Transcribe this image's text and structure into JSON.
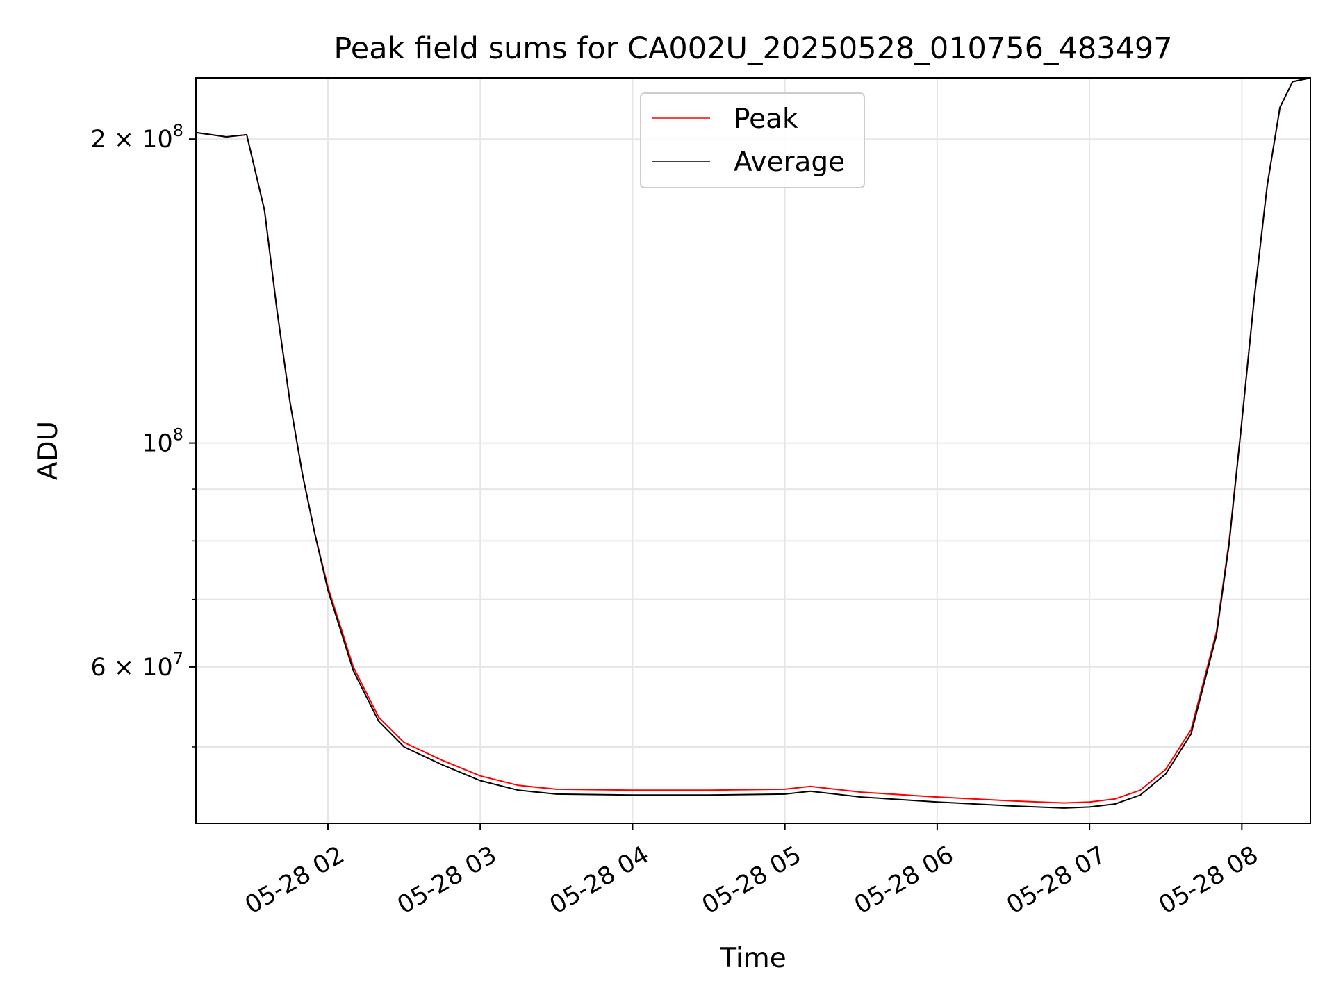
{
  "chart_data": {
    "type": "line",
    "title": "Peak field sums for CA002U_20250528_010756_483497",
    "xlabel": "Time",
    "ylabel": "ADU",
    "yscale": "log",
    "grid": true,
    "legend_position": "top-center",
    "xlim": [
      "05-28 01:08",
      "05-28 08:27"
    ],
    "ylim": [
      42000000.0,
      230000000.0
    ],
    "x_ticks": [
      "05-28 02",
      "05-28 03",
      "05-28 04",
      "05-28 05",
      "05-28 06",
      "05-28 07",
      "05-28 08"
    ],
    "y_ticks": [
      {
        "value": 200000000,
        "mantissa": "2 × 10",
        "exp": "8"
      },
      {
        "value": 100000000,
        "mantissa": "10",
        "exp": "8"
      },
      {
        "value": 60000000,
        "mantissa": "6 × 10",
        "exp": "7"
      }
    ],
    "series": [
      {
        "name": "Peak",
        "color": "#ff0000",
        "x": [
          "05-28 01:08",
          "05-28 01:20",
          "05-28 01:28",
          "05-28 01:35",
          "05-28 01:40",
          "05-28 01:45",
          "05-28 01:50",
          "05-28 01:55",
          "05-28 02:00",
          "05-28 02:10",
          "05-28 02:20",
          "05-28 02:30",
          "05-28 02:45",
          "05-28 03:00",
          "05-28 03:15",
          "05-28 03:30",
          "05-28 04:00",
          "05-28 04:30",
          "05-28 05:00",
          "05-28 05:10",
          "05-28 05:30",
          "05-28 06:00",
          "05-28 06:30",
          "05-28 06:50",
          "05-28 07:00",
          "05-28 07:10",
          "05-28 07:20",
          "05-28 07:30",
          "05-28 07:40",
          "05-28 07:50",
          "05-28 07:55",
          "05-28 08:00",
          "05-28 08:05",
          "05-28 08:10",
          "05-28 08:15",
          "05-28 08:20",
          "05-28 08:27"
        ],
        "values": [
          203000000,
          201000000,
          202000000,
          170000000,
          135000000,
          110000000,
          93000000,
          81000000,
          72000000,
          60000000,
          53500000,
          50500000,
          48500000,
          46800000,
          45800000,
          45400000,
          45300000,
          45300000,
          45400000,
          45700000,
          45100000,
          44600000,
          44200000,
          44000000,
          44100000,
          44400000,
          45300000,
          47500000,
          52000000,
          65000000,
          80000000,
          105000000,
          140000000,
          180000000,
          215000000,
          228000000,
          230000000
        ]
      },
      {
        "name": "Average",
        "color": "#000000",
        "x": [
          "05-28 01:08",
          "05-28 01:20",
          "05-28 01:28",
          "05-28 01:35",
          "05-28 01:40",
          "05-28 01:45",
          "05-28 01:50",
          "05-28 01:55",
          "05-28 02:00",
          "05-28 02:10",
          "05-28 02:20",
          "05-28 02:30",
          "05-28 02:45",
          "05-28 03:00",
          "05-28 03:15",
          "05-28 03:30",
          "05-28 04:00",
          "05-28 04:30",
          "05-28 05:00",
          "05-28 05:10",
          "05-28 05:30",
          "05-28 06:00",
          "05-28 06:30",
          "05-28 06:50",
          "05-28 07:00",
          "05-28 07:10",
          "05-28 07:20",
          "05-28 07:30",
          "05-28 07:40",
          "05-28 07:50",
          "05-28 07:55",
          "05-28 08:00",
          "05-28 08:05",
          "05-28 08:10",
          "05-28 08:15",
          "05-28 08:20",
          "05-28 08:27"
        ],
        "values": [
          203000000,
          201000000,
          202000000,
          170000000,
          135000000,
          110000000,
          93000000,
          81000000,
          71500000,
          59500000,
          53000000,
          50000000,
          48000000,
          46300000,
          45300000,
          44900000,
          44800000,
          44800000,
          44900000,
          45200000,
          44600000,
          44100000,
          43700000,
          43500000,
          43600000,
          43900000,
          44800000,
          47000000,
          51500000,
          64500000,
          79500000,
          105000000,
          140000000,
          180000000,
          215000000,
          228000000,
          230000000
        ]
      }
    ]
  }
}
